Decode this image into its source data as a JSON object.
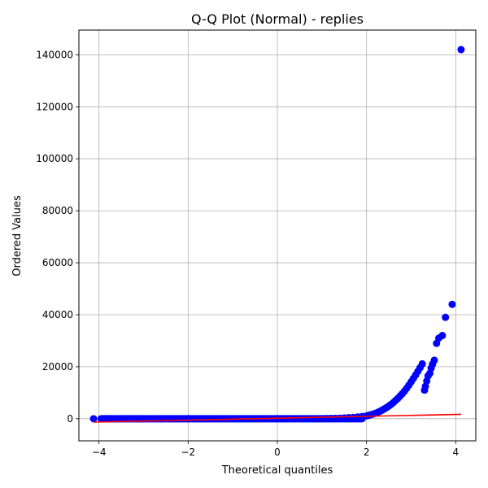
{
  "chart_data": {
    "type": "scatter",
    "title": "Q-Q Plot (Normal) - replies",
    "xlabel": "Theoretical quantiles",
    "ylabel": "Ordered Values",
    "xlim": [
      -4.45,
      4.45
    ],
    "ylim": [
      -8500,
      149500
    ],
    "xticks": [
      -4,
      -2,
      0,
      2,
      4
    ],
    "xtick_labels": [
      "−4",
      "−2",
      "0",
      "2",
      "4"
    ],
    "yticks": [
      0,
      20000,
      40000,
      60000,
      80000,
      100000,
      120000,
      140000
    ],
    "ytick_labels": [
      "0",
      "20000",
      "40000",
      "60000",
      "80000",
      "100000",
      "120000",
      "140000"
    ],
    "grid": true,
    "series": [
      {
        "kind": "points",
        "color": "#0000ff",
        "x": [
          -4.12,
          -3.95,
          -3.88,
          -3.8,
          -3.7,
          -3.6,
          -3.5,
          -3.4,
          -3.3,
          -3.2,
          -3.1,
          -3.0,
          -2.8,
          -2.6,
          -2.4,
          -2.2,
          -2.0,
          -1.8,
          -1.6,
          -1.4,
          -1.2,
          -1.0,
          -0.8,
          -0.6,
          -0.4,
          -0.2,
          0.0,
          0.2,
          0.4,
          0.6,
          0.8,
          1.0,
          1.1,
          1.2,
          1.3,
          1.4,
          1.5,
          1.6,
          1.7,
          1.8,
          1.9,
          2.0,
          2.05,
          2.1,
          2.15,
          2.2,
          2.25,
          2.3,
          2.35,
          2.4,
          2.45,
          2.5,
          2.55,
          2.6,
          2.65,
          2.7,
          2.75,
          2.8,
          2.85,
          2.9,
          2.95,
          3.0,
          3.05,
          3.1,
          3.15,
          3.2,
          3.25,
          3.3,
          3.32,
          3.35,
          3.38,
          3.42,
          3.45,
          3.48,
          3.52,
          3.57,
          3.62,
          3.7,
          3.77,
          3.92,
          4.12
        ],
        "y": [
          0,
          0,
          0,
          0,
          0,
          0,
          0,
          0,
          0,
          0,
          0,
          0,
          0,
          0,
          0,
          0,
          0,
          0,
          0,
          0,
          0,
          0,
          0,
          0,
          0,
          0,
          0,
          0,
          0,
          0,
          0,
          0,
          50,
          100,
          150,
          200,
          300,
          400,
          500,
          650,
          850,
          1100,
          1300,
          1550,
          1800,
          2100,
          2450,
          2850,
          3300,
          3800,
          4300,
          4900,
          5500,
          6200,
          7000,
          7800,
          8700,
          9600,
          10600,
          11700,
          12900,
          14200,
          15500,
          16800,
          18200,
          19600,
          21100,
          11000,
          12500,
          14500,
          16500,
          17500,
          19500,
          21000,
          22500,
          29000,
          31000,
          32000,
          39000,
          44000,
          142000
        ]
      },
      {
        "kind": "fit-line",
        "color": "#ff0000",
        "x": [
          -4.12,
          4.12
        ],
        "y": [
          -1300,
          1700
        ]
      }
    ]
  }
}
